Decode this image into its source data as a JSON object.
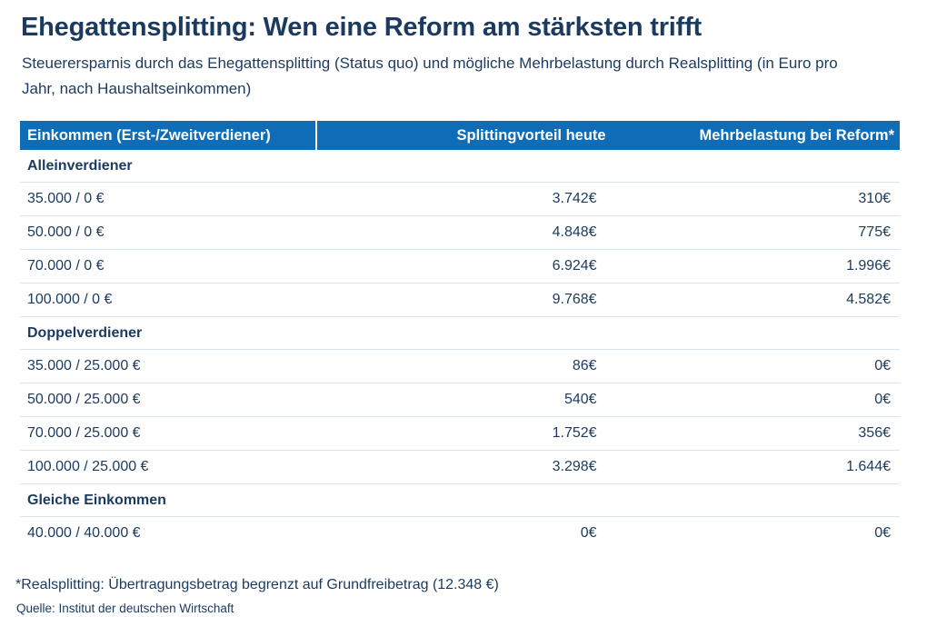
{
  "chart_data": {
    "type": "table",
    "title": "Ehegattensplitting: Wen eine Reform am stärksten trifft",
    "subtitle": "Steuerersparnis durch das Ehegattensplitting (Status quo) und mögliche Mehrbelastung durch Realsplitting (in Euro pro Jahr, nach Haushaltseinkommen)",
    "columns": [
      "Einkommen (Erst-/Zweitverdiener)",
      "Splittingvorteil heute",
      "Mehrbelastung bei Reform*"
    ],
    "sections": [
      {
        "label": "Alleinverdiener",
        "rows": [
          [
            "35.000 / 0 €",
            "3.742€",
            "310€"
          ],
          [
            "50.000 / 0 €",
            "4.848€",
            "775€"
          ],
          [
            "70.000 / 0 €",
            "6.924€",
            "1.996€"
          ],
          [
            "100.000 / 0 €",
            "9.768€",
            "4.582€"
          ]
        ]
      },
      {
        "label": "Doppelverdiener",
        "rows": [
          [
            "35.000 / 25.000 €",
            "86€",
            "0€"
          ],
          [
            "50.000 / 25.000 €",
            "540€",
            "0€"
          ],
          [
            "70.000 / 25.000 €",
            "1.752€",
            "356€"
          ],
          [
            "100.000 / 25.000 €",
            "3.298€",
            "1.644€"
          ]
        ]
      },
      {
        "label": "Gleiche Einkommen",
        "rows": [
          [
            "40.000 / 40.000 €",
            "0€",
            "0€"
          ]
        ]
      }
    ],
    "footnote": "*Realsplitting: Übertragungsbetrag begrenzt auf Grundfreibetrag (12.348 €)",
    "source": "Quelle: Institut der deutschen Wirtschaft",
    "layout": {
      "header_bg_color": "#0f6cb6",
      "header_text_color": "#ffffff",
      "text_color": "#1b3a5e",
      "row_divider_color": "#d8e4f0",
      "grid": "horizontal-only",
      "legend": "none"
    }
  }
}
